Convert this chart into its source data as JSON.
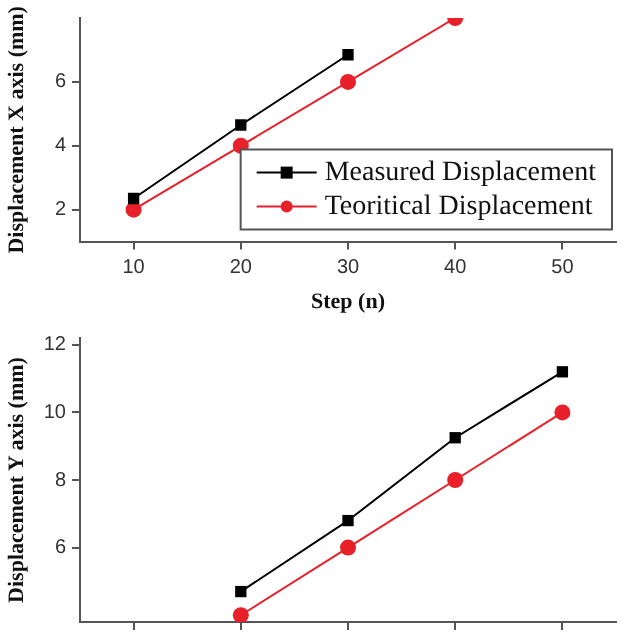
{
  "chart_data": [
    {
      "type": "line",
      "xlabel": "Step (n)",
      "ylabel": "Displacement X axis (mm)",
      "x": [
        10,
        20,
        30,
        40
      ],
      "xlim": [
        5,
        55
      ],
      "xticks": [
        10,
        20,
        30,
        40,
        50
      ],
      "ylim": [
        1,
        8
      ],
      "yticks": [
        2,
        4,
        6
      ],
      "legend": "bottom right",
      "grid": false,
      "series": [
        {
          "name": "Measured Displacement",
          "color": "#000000",
          "marker": "square",
          "values": [
            2.35,
            4.65,
            6.85,
            null
          ]
        },
        {
          "name": "Teoritical Displacement",
          "color": "#e8202a",
          "marker": "circle",
          "values": [
            2,
            4,
            6,
            8
          ]
        }
      ]
    },
    {
      "type": "line",
      "ylabel": "Displacement Y axis (mm)",
      "x": [
        20,
        30,
        40,
        50
      ],
      "xlim": [
        5,
        55
      ],
      "xticks": [
        {
          "value": 10,
          "label": null
        },
        {
          "value": 20,
          "label": null
        },
        {
          "value": 30,
          "label": null
        },
        {
          "value": 40,
          "label": null
        },
        {
          "value": 50,
          "label": null
        }
      ],
      "ylim": [
        3.8,
        12.2
      ],
      "yticks": [
        6,
        8,
        10,
        12
      ],
      "tick_labels": "y",
      "legend": false,
      "grid": false,
      "series": [
        {
          "color": "#000000",
          "marker": "square",
          "values": [
            4.7,
            6.8,
            9.25,
            11.2
          ]
        },
        {
          "color": "#e8202a",
          "marker": "circle",
          "values": [
            4,
            6,
            8,
            10
          ]
        }
      ]
    }
  ]
}
